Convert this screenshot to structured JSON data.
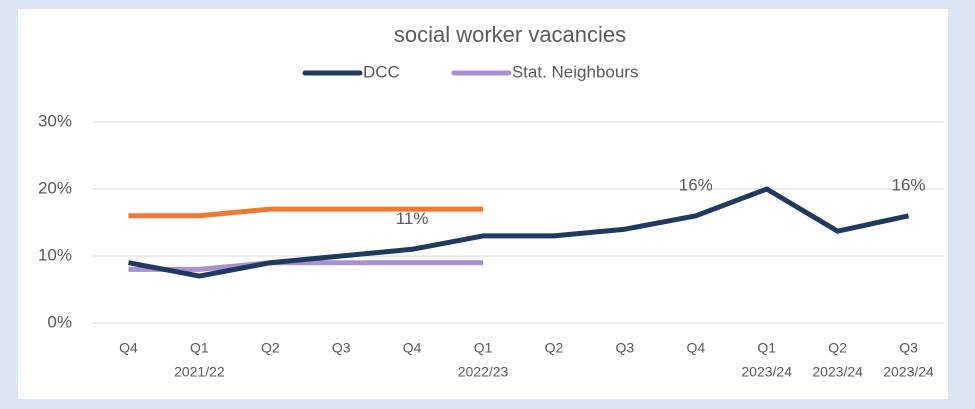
{
  "chart_data": {
    "type": "line",
    "title": "social worker vacancies",
    "categories": [
      "Q4",
      "Q1",
      "Q2",
      "Q3",
      "Q4",
      "Q1",
      "Q2",
      "Q3",
      "Q4",
      "Q1",
      "Q2",
      "Q3"
    ],
    "category_years": [
      null,
      "2021/22",
      null,
      null,
      null,
      "2022/23",
      null,
      null,
      null,
      "2023/24",
      "2023/24",
      "2023/24"
    ],
    "series": [
      {
        "name": "DCC",
        "color": "#1f3a5f",
        "values": [
          9,
          7,
          9,
          10,
          11,
          13,
          13,
          14,
          16,
          20,
          13.7,
          16
        ],
        "value_labels": [
          null,
          null,
          null,
          null,
          "11%",
          null,
          null,
          null,
          "16%",
          null,
          null,
          "16%"
        ]
      },
      {
        "name": "Stat. Neighbours",
        "color": "#a98fd6",
        "values": [
          8,
          8,
          9,
          9,
          9,
          9,
          null,
          null,
          null,
          null,
          null,
          null
        ]
      },
      {
        "color": "#f07830",
        "values": [
          16,
          16,
          17,
          17,
          17,
          17,
          null,
          null,
          null,
          null,
          null,
          null
        ]
      }
    ],
    "ylim": [
      0,
      30
    ],
    "yticks": [
      {
        "value": 0,
        "label": "0%"
      },
      {
        "value": 10,
        "label": "10%"
      },
      {
        "value": 20,
        "label": "20%"
      },
      {
        "value": 30,
        "label": "30%"
      }
    ],
    "grid": true,
    "legend": "top"
  }
}
